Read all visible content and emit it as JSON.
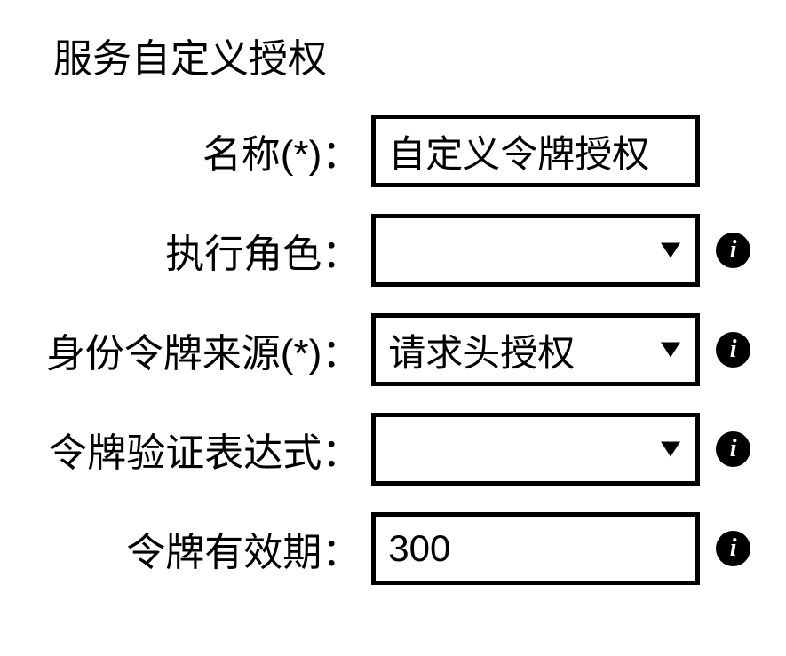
{
  "title": "服务自定义授权",
  "fields": {
    "name": {
      "label": "名称(*)：",
      "value": "自定义令牌授权",
      "has_info": false,
      "type": "text"
    },
    "execution_role": {
      "label": "执行角色：",
      "value": "",
      "has_info": true,
      "type": "select"
    },
    "token_source": {
      "label": "身份令牌来源(*)：",
      "value": "请求头授权",
      "has_info": true,
      "type": "select"
    },
    "token_validation": {
      "label": "令牌验证表达式：",
      "value": "",
      "has_info": true,
      "type": "select"
    },
    "token_expiry": {
      "label": "令牌有效期：",
      "value": "300",
      "has_info": true,
      "type": "text"
    }
  },
  "colors": {
    "border": "#000000",
    "text": "#000000",
    "background": "#ffffff"
  }
}
